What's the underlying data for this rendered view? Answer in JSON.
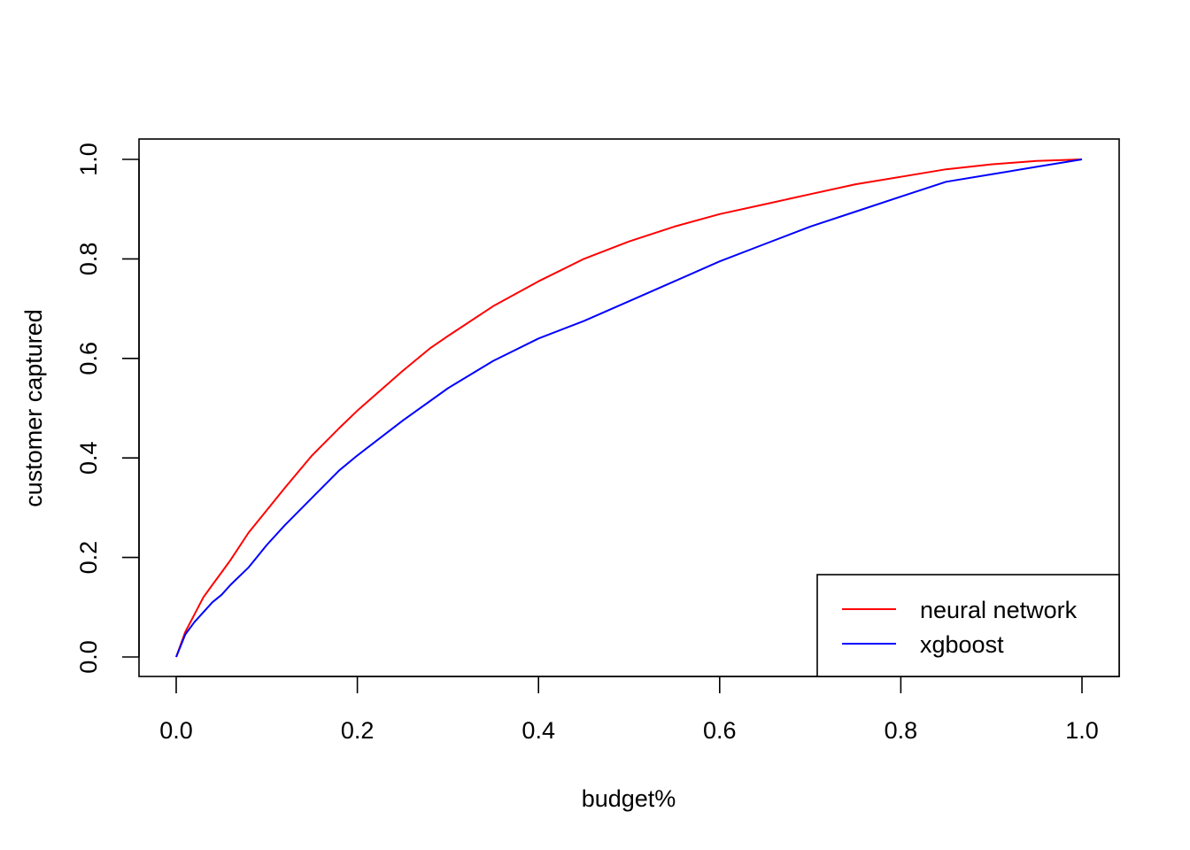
{
  "chart_data": {
    "type": "line",
    "title": "",
    "xlabel": "budget%",
    "ylabel": "customer captured",
    "xlim": [
      0.0,
      1.0
    ],
    "ylim": [
      0.0,
      1.0
    ],
    "xticks": [
      "0.0",
      "0.2",
      "0.4",
      "0.6",
      "0.8",
      "1.0"
    ],
    "yticks": [
      "0.0",
      "0.2",
      "0.4",
      "0.6",
      "0.8",
      "1.0"
    ],
    "grid": false,
    "legend_position": "bottom-right",
    "series": [
      {
        "name": "neural network",
        "color": "#ff0000",
        "x": [
          0.0,
          0.01,
          0.02,
          0.03,
          0.04,
          0.05,
          0.06,
          0.08,
          0.1,
          0.12,
          0.15,
          0.18,
          0.2,
          0.25,
          0.28,
          0.3,
          0.35,
          0.4,
          0.45,
          0.5,
          0.55,
          0.6,
          0.65,
          0.7,
          0.75,
          0.8,
          0.85,
          0.9,
          0.95,
          1.0
        ],
        "y": [
          0.0,
          0.05,
          0.085,
          0.12,
          0.145,
          0.17,
          0.195,
          0.25,
          0.295,
          0.34,
          0.405,
          0.46,
          0.495,
          0.575,
          0.62,
          0.645,
          0.705,
          0.755,
          0.8,
          0.835,
          0.865,
          0.89,
          0.91,
          0.93,
          0.95,
          0.965,
          0.98,
          0.99,
          0.997,
          1.0
        ]
      },
      {
        "name": "xgboost",
        "color": "#0000ff",
        "x": [
          0.0,
          0.01,
          0.02,
          0.03,
          0.04,
          0.05,
          0.06,
          0.08,
          0.1,
          0.12,
          0.15,
          0.18,
          0.2,
          0.25,
          0.3,
          0.35,
          0.4,
          0.45,
          0.5,
          0.55,
          0.6,
          0.65,
          0.7,
          0.75,
          0.8,
          0.85,
          0.9,
          0.95,
          1.0
        ],
        "y": [
          0.0,
          0.045,
          0.07,
          0.09,
          0.11,
          0.125,
          0.145,
          0.18,
          0.225,
          0.265,
          0.32,
          0.375,
          0.405,
          0.475,
          0.54,
          0.595,
          0.64,
          0.675,
          0.715,
          0.755,
          0.795,
          0.83,
          0.865,
          0.895,
          0.925,
          0.955,
          0.97,
          0.985,
          1.0
        ]
      }
    ]
  }
}
